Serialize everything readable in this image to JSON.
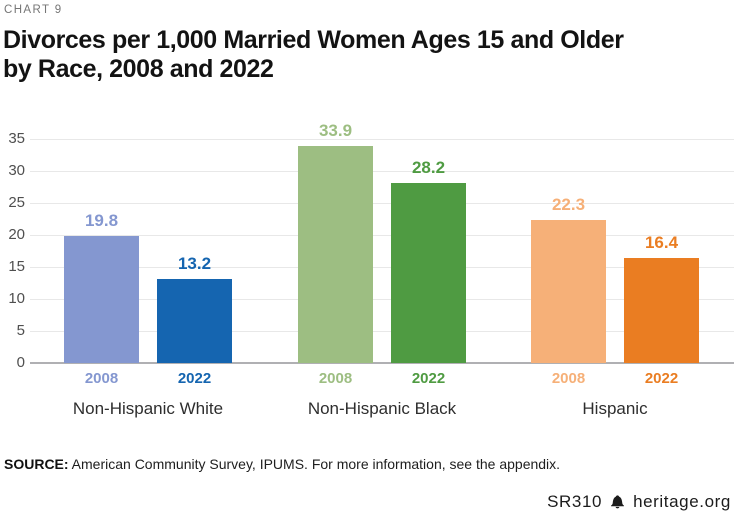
{
  "header": {
    "kicker": "CHART 9",
    "title_line1": "Divorces per 1,000 Married Women Ages 15 and Older",
    "title_line2": "by Race, 2008 and 2022"
  },
  "chart_data": {
    "type": "bar",
    "title": "Divorces per 1,000 Married Women Ages 15 and Older by Race, 2008 and 2022",
    "categories": [
      "Non-Hispanic White",
      "Non-Hispanic Black",
      "Hispanic"
    ],
    "series": [
      {
        "name": "2008",
        "values": [
          19.8,
          33.9,
          22.3
        ]
      },
      {
        "name": "2022",
        "values": [
          13.2,
          28.2,
          16.4
        ]
      }
    ],
    "ylim": [
      0,
      35
    ],
    "yticks": [
      0,
      5,
      10,
      15,
      20,
      25,
      30,
      35
    ],
    "grid": true,
    "value_labels": true,
    "legend_position": "year-under-each-bar",
    "colors": {
      "series_by_group": [
        {
          "2008": "#8497D0",
          "2022": "#1565B0"
        },
        {
          "2008": "#9DBE82",
          "2022": "#4F9B42"
        },
        {
          "2008": "#F6B078",
          "2022": "#EA7D22"
        }
      ],
      "grid": "#E8E8E8",
      "baseline": "#B0B0B3",
      "tick_label": "#4F4F4F"
    }
  },
  "footer": {
    "source_label": "SOURCE:",
    "source_text": " American Community Survey, IPUMS. For more information, see the appendix.",
    "doc_id": "SR310",
    "site": "heritage.org",
    "logo_icon": "heritage-bell-icon"
  }
}
